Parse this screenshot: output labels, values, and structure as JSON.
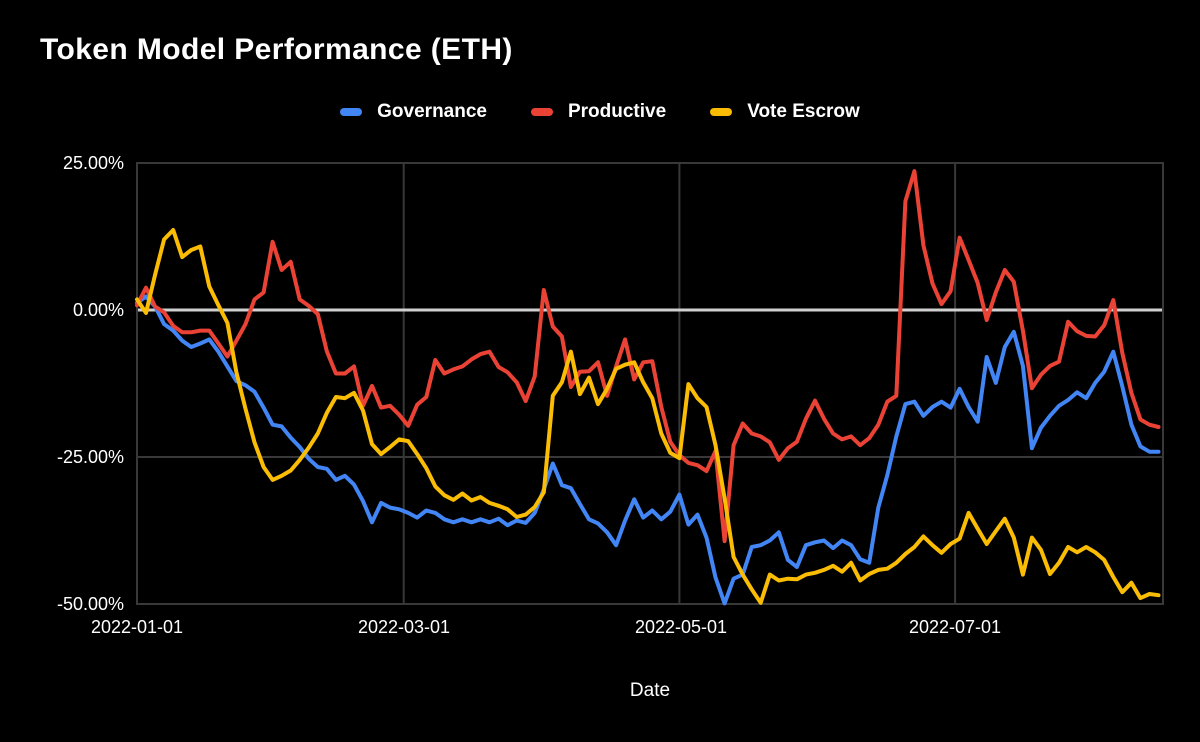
{
  "title": "Token Model Performance (ETH)",
  "xaxis_title": "Date",
  "colors": {
    "background": "#000000",
    "grid": "#383838",
    "zero_line": "#cfcfcf",
    "text": "#ffffff",
    "governance": "#4285F4",
    "productive": "#EA4335",
    "vote_escrow": "#FBBC04"
  },
  "chart_data": {
    "type": "line",
    "title": "Token Model Performance (ETH)",
    "xlabel": "Date",
    "ylabel": "",
    "ylim": [
      -50,
      25
    ],
    "xlim": [
      0,
      227
    ],
    "grid": true,
    "legend_position": "top",
    "x_ticks": [
      {
        "label": "2022-01-01",
        "day": 0
      },
      {
        "label": "2022-03-01",
        "day": 59
      },
      {
        "label": "2022-05-01",
        "day": 120
      },
      {
        "label": "2022-07-01",
        "day": 181
      }
    ],
    "y_ticks": [
      {
        "label": "25.00%",
        "value": 25
      },
      {
        "label": "0.00%",
        "value": 0
      },
      {
        "label": "-25.00%",
        "value": -25
      },
      {
        "label": "-50.00%",
        "value": -50
      }
    ],
    "x_unit": "days since 2022-01-01",
    "series": [
      {
        "name": "Governance",
        "color": "#4285F4",
        "step_days": 2,
        "values": [
          1.2,
          2.3,
          0.6,
          -2.4,
          -3.5,
          -5.2,
          -6.3,
          -5.7,
          -5.0,
          -7.1,
          -9.6,
          -12.1,
          -12.8,
          -13.9,
          -16.6,
          -19.5,
          -19.8,
          -21.7,
          -23.3,
          -25.3,
          -26.7,
          -27.0,
          -28.9,
          -28.2,
          -29.7,
          -32.5,
          -36.1,
          -32.8,
          -33.6,
          -33.9,
          -34.5,
          -35.3,
          -34.1,
          -34.5,
          -35.6,
          -36.1,
          -35.6,
          -36.1,
          -35.6,
          -36.1,
          -35.5,
          -36.6,
          -35.8,
          -36.2,
          -34.5,
          -30.5,
          -26.1,
          -29.8,
          -30.3,
          -33.0,
          -35.6,
          -36.3,
          -37.8,
          -40.0,
          -35.8,
          -32.2,
          -35.3,
          -34.1,
          -35.6,
          -34.3,
          -31.4,
          -36.5,
          -34.8,
          -38.7,
          -45.5,
          -49.9,
          -45.7,
          -45.0,
          -40.3,
          -40.0,
          -39.2,
          -37.8,
          -42.5,
          -43.7,
          -40.0,
          -39.5,
          -39.2,
          -40.5,
          -39.2,
          -40.0,
          -42.4,
          -43.0,
          -33.6,
          -28.1,
          -21.5,
          -16.0,
          -15.6,
          -18.0,
          -16.5,
          -15.6,
          -16.6,
          -13.4,
          -16.5,
          -19.0,
          -8.0,
          -12.4,
          -6.3,
          -3.7,
          -9.5,
          -23.5,
          -20.0,
          -18.0,
          -16.3,
          -15.3,
          -14.0,
          -15.0,
          -12.4,
          -10.5,
          -7.1,
          -13.0,
          -19.5,
          -23.2,
          -24.1,
          -24.1
        ]
      },
      {
        "name": "Productive",
        "color": "#EA4335",
        "step_days": 2,
        "values": [
          0.8,
          3.8,
          0.6,
          -0.4,
          -2.7,
          -3.8,
          -3.8,
          -3.5,
          -3.5,
          -5.7,
          -7.9,
          -5.2,
          -2.4,
          1.8,
          3.0,
          11.6,
          6.8,
          8.2,
          1.8,
          0.7,
          -0.7,
          -7.0,
          -10.8,
          -10.8,
          -9.6,
          -16.3,
          -12.9,
          -16.6,
          -16.3,
          -17.8,
          -19.7,
          -16.1,
          -14.8,
          -8.5,
          -10.8,
          -10.1,
          -9.6,
          -8.4,
          -7.5,
          -7.1,
          -9.7,
          -10.6,
          -12.3,
          -15.5,
          -11.3,
          3.4,
          -2.8,
          -4.5,
          -13.1,
          -10.5,
          -10.4,
          -8.9,
          -14.6,
          -9.6,
          -5.0,
          -11.8,
          -8.9,
          -8.7,
          -16.5,
          -22.4,
          -24.7,
          -26.0,
          -26.4,
          -27.4,
          -24.0,
          -39.3,
          -23.0,
          -19.3,
          -21.0,
          -21.5,
          -22.5,
          -25.5,
          -23.5,
          -22.4,
          -18.5,
          -15.4,
          -18.5,
          -21.0,
          -22.0,
          -21.5,
          -23.0,
          -21.8,
          -19.5,
          -15.6,
          -14.6,
          18.5,
          23.6,
          11.0,
          4.5,
          1.0,
          3.2,
          12.3,
          8.5,
          4.6,
          -1.7,
          3.0,
          6.8,
          4.8,
          -3.5,
          -13.3,
          -11.0,
          -9.5,
          -8.8,
          -2.0,
          -3.6,
          -4.4,
          -4.5,
          -2.6,
          1.7,
          -7.3,
          -14.1,
          -18.6,
          -19.5,
          -19.9
        ]
      },
      {
        "name": "Vote Escrow",
        "color": "#FBBC04",
        "step_days": 2,
        "values": [
          1.8,
          -0.5,
          6.0,
          12.0,
          13.6,
          9.0,
          10.2,
          10.8,
          4.0,
          0.8,
          -2.2,
          -10.6,
          -16.8,
          -22.5,
          -26.7,
          -28.9,
          -28.2,
          -27.3,
          -25.5,
          -23.4,
          -21.0,
          -17.5,
          -14.8,
          -15.0,
          -14.1,
          -17.1,
          -22.8,
          -24.5,
          -23.3,
          -22.0,
          -22.3,
          -24.5,
          -26.9,
          -30.0,
          -31.5,
          -32.3,
          -31.2,
          -32.4,
          -31.8,
          -32.8,
          -33.3,
          -33.9,
          -35.2,
          -34.8,
          -33.5,
          -31.0,
          -14.6,
          -12.3,
          -7.1,
          -14.3,
          -11.5,
          -16.0,
          -13.4,
          -10.0,
          -9.3,
          -8.9,
          -12.3,
          -15.0,
          -21.0,
          -24.3,
          -25.2,
          -12.6,
          -15.0,
          -16.5,
          -23.0,
          -32.0,
          -42.0,
          -45.0,
          -47.5,
          -49.8,
          -45.0,
          -46.0,
          -45.7,
          -45.8,
          -45.0,
          -44.7,
          -44.2,
          -43.5,
          -44.5,
          -43.0,
          -46.0,
          -44.9,
          -44.2,
          -44.0,
          -43.0,
          -41.5,
          -40.3,
          -38.5,
          -40.0,
          -41.3,
          -39.8,
          -38.9,
          -34.5,
          -37.2,
          -39.8,
          -37.6,
          -35.5,
          -38.7,
          -45.0,
          -38.7,
          -40.8,
          -44.9,
          -43.0,
          -40.3,
          -41.2,
          -40.3,
          -41.2,
          -42.5,
          -45.4,
          -48.0,
          -46.4,
          -49.0,
          -48.3,
          -48.5
        ]
      }
    ]
  }
}
